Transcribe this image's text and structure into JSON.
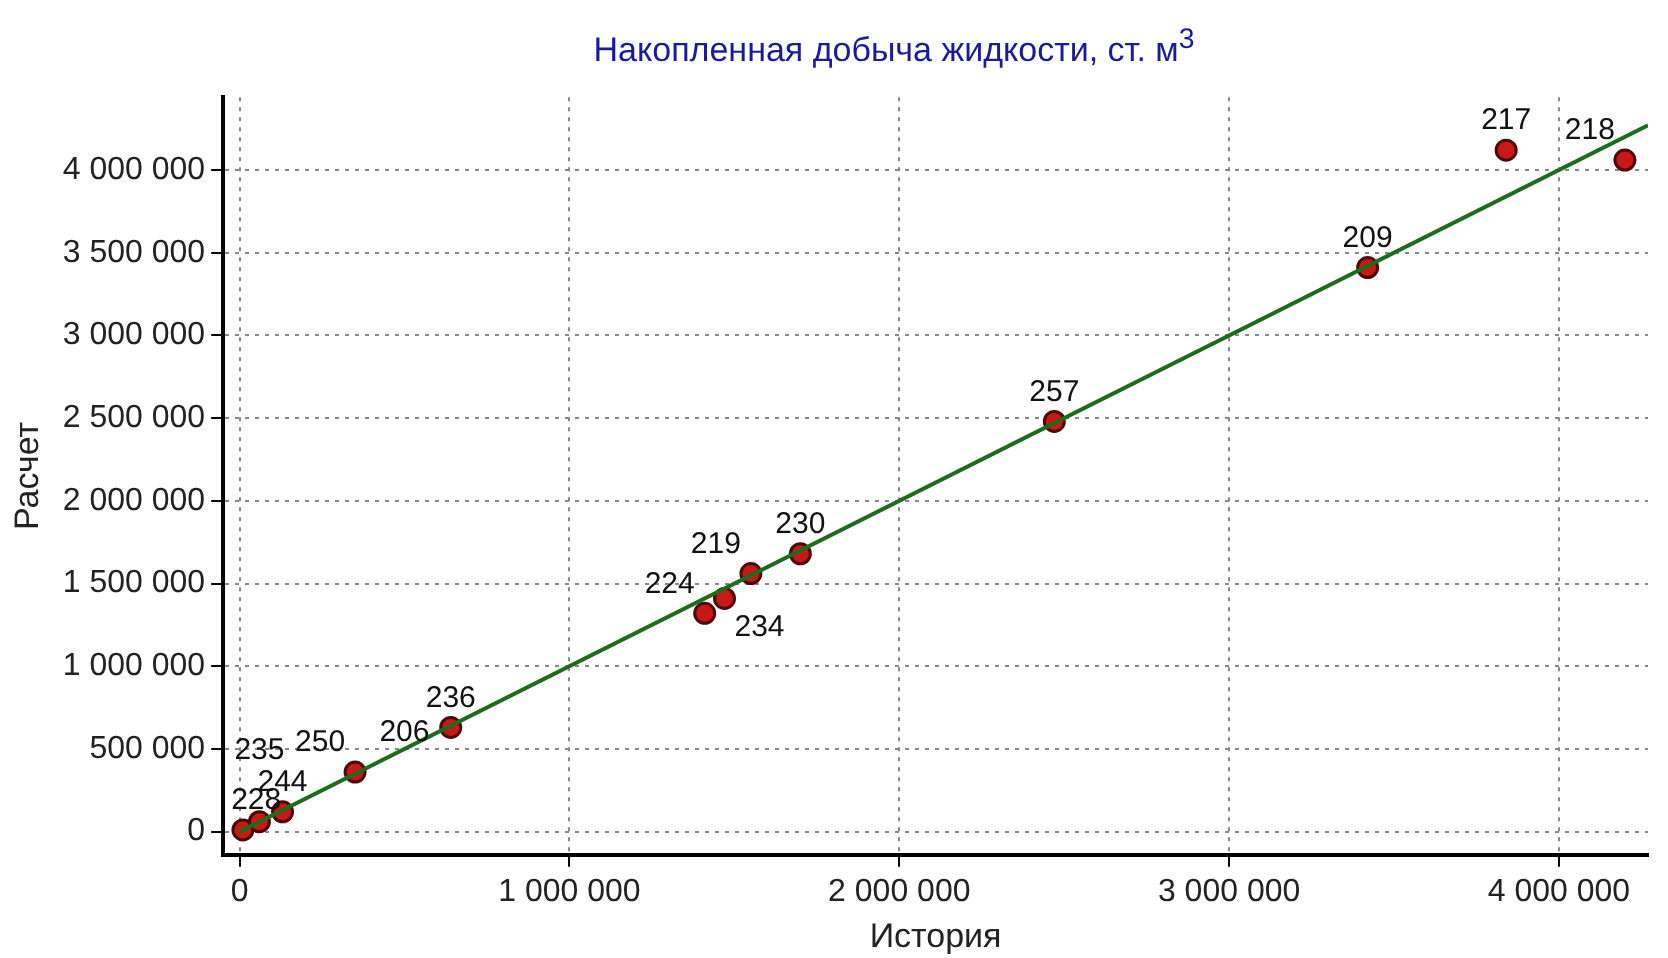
{
  "chart_data": {
    "type": "scatter",
    "title": "Накопленная добыча жидкости, ст. м$^{3}$",
    "xlabel": "История",
    "ylabel": "Расчет",
    "xlim": [
      -50000,
      4270000
    ],
    "ylim": [
      -140000,
      4440000
    ],
    "xticks": [
      {
        "value": 0,
        "label": "0"
      },
      {
        "value": 1000000,
        "label": "1 000 000"
      },
      {
        "value": 2000000,
        "label": "2 000 000"
      },
      {
        "value": 3000000,
        "label": "3 000 000"
      },
      {
        "value": 4000000,
        "label": "4 000 000"
      }
    ],
    "yticks": [
      {
        "value": 0,
        "label": "0"
      },
      {
        "value": 500000,
        "label": "500 000"
      },
      {
        "value": 1000000,
        "label": "1 000 000"
      },
      {
        "value": 1500000,
        "label": "1 500 000"
      },
      {
        "value": 2000000,
        "label": "2 000 000"
      },
      {
        "value": 2500000,
        "label": "2 500 000"
      },
      {
        "value": 3000000,
        "label": "3 000 000"
      },
      {
        "value": 3500000,
        "label": "3 500 000"
      },
      {
        "value": 4000000,
        "label": "4 000 000"
      }
    ],
    "grid": true,
    "marker": "circle",
    "series": [
      {
        "type": "line",
        "color": "#1e6b1e",
        "line_style": "solid",
        "marker": "none",
        "x": [
          0,
          4270000
        ],
        "values": [
          0,
          4270000
        ]
      },
      {
        "type": "scatter",
        "color": "#c81818",
        "x": [
          10000,
          60000,
          130000,
          350000,
          630000,
          640000,
          1410000,
          1470000,
          1550000,
          1700000,
          2470000,
          3420000,
          3840000,
          4200000
        ],
        "values": [
          10000,
          60000,
          120000,
          360000,
          null,
          630000,
          1320000,
          1410000,
          1560000,
          1680000,
          2480000,
          3410000,
          4120000,
          4060000
        ]
      }
    ],
    "annotations": [
      {
        "text": "228",
        "x": 10000,
        "y": 10000
      },
      {
        "text": "235",
        "x": 60000,
        "y": 60000
      },
      {
        "text": "244",
        "x": 130000,
        "y": 120000
      },
      {
        "text": "250",
        "x": 350000,
        "y": 360000
      },
      {
        "text": "206",
        "x": 630000,
        "y": 610000
      },
      {
        "text": "236",
        "x": 640000,
        "y": 630000
      },
      {
        "text": "224",
        "x": 1410000,
        "y": 1320000
      },
      {
        "text": "234",
        "x": 1470000,
        "y": 1410000
      },
      {
        "text": "219",
        "x": 1550000,
        "y": 1560000
      },
      {
        "text": "230",
        "x": 1700000,
        "y": 1680000
      },
      {
        "text": "257",
        "x": 2470000,
        "y": 2480000
      },
      {
        "text": "209",
        "x": 3420000,
        "y": 3410000
      },
      {
        "text": "217",
        "x": 3840000,
        "y": 4120000
      },
      {
        "text": "218",
        "x": 4200000,
        "y": 4060000
      }
    ]
  }
}
